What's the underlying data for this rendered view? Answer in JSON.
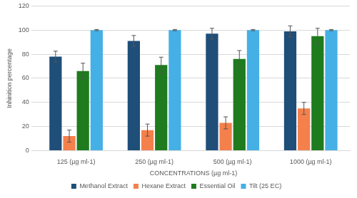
{
  "chart_data": {
    "type": "bar",
    "x_label": "CONCENTRATIONS (µg ml-1)",
    "y_label": "Inhinition percentage",
    "categories": [
      "125 (µg ml-1)",
      "250 (µg ml-1)",
      "500 (µg ml-1)",
      "1000 (µg ml-1)"
    ],
    "series": [
      {
        "name": "Methanol Extract",
        "color": "#1f4e79",
        "values": [
          78,
          91,
          97,
          99
        ],
        "errors": [
          4.5,
          4.5,
          4.5,
          4.5
        ]
      },
      {
        "name": "Hexane Extract",
        "color": "#f4804c",
        "values": [
          12,
          17,
          23,
          35
        ],
        "errors": [
          5,
          5,
          5,
          5
        ]
      },
      {
        "name": "Essential Oil",
        "color": "#1e7b1e",
        "values": [
          66,
          71,
          76,
          95
        ],
        "errors": [
          6.5,
          6.5,
          7,
          6.5
        ]
      },
      {
        "name": "Tilt (25 EC)",
        "color": "#45b0e6",
        "values": [
          100,
          100,
          100,
          100
        ],
        "errors": [
          0.5,
          0.5,
          0.5,
          0.5
        ]
      }
    ],
    "ylim": [
      0,
      120
    ],
    "yticks": [
      0,
      20,
      40,
      60,
      80,
      100,
      120
    ],
    "grid": true,
    "legend": "bottom"
  }
}
